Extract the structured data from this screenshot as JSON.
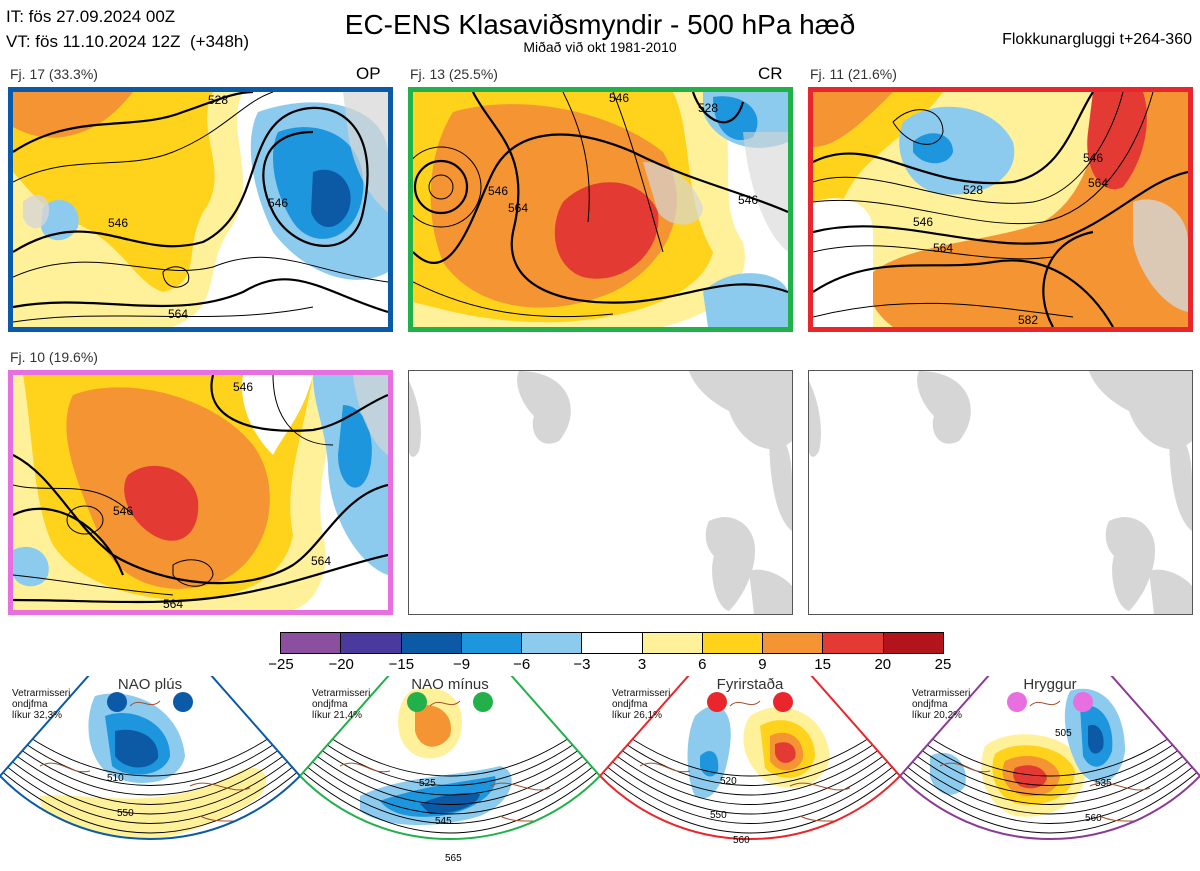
{
  "header": {
    "init": "IT: fös 27.09.2024 00Z",
    "valid": "VT: fös 11.10.2024 12Z  (+348h)",
    "title": "EC-ENS Klasaviðsmyndir - 500 hPa hæð",
    "subtitle": "Miðað við okt 1981-2010",
    "window": "Flokkunargluggi t+264-360"
  },
  "clusters": [
    {
      "label": "Fj. 17 (33.3%)",
      "tag": "OP",
      "color": "#0a5aa8",
      "contours": [
        "528",
        "546",
        "546",
        "564"
      ]
    },
    {
      "label": "Fj. 13 (25.5%)",
      "tag": "CR",
      "color": "#22b04b",
      "contours": [
        "546",
        "546",
        "564",
        "546",
        "528"
      ]
    },
    {
      "label": "Fj. 11 (21.6%)",
      "tag": "",
      "color": "#e8262b",
      "contours": [
        "528",
        "546",
        "564",
        "546",
        "564",
        "582"
      ]
    },
    {
      "label": "Fj. 10 (19.6%)",
      "tag": "",
      "color": "#e86fe0",
      "contours": [
        "546",
        "546",
        "564",
        "564"
      ]
    }
  ],
  "colorbar": {
    "colors": [
      "#8c4e9f",
      "#4b3a9d",
      "#0c5aa6",
      "#1e96dd",
      "#8dcbee",
      "#ffffff",
      "#fff19a",
      "#ffd21c",
      "#f59432",
      "#e33b34",
      "#b3131b"
    ],
    "labels": [
      "−25",
      "−20",
      "−15",
      "−9",
      "−6",
      "−3",
      "3",
      "6",
      "9",
      "15",
      "20",
      "25"
    ]
  },
  "regimes": [
    {
      "name": "NAO plús",
      "meta": [
        "Vetrarmisseri",
        "ondjfma",
        "líkur 32,3%"
      ],
      "color": "#0a5aa8",
      "labels": [
        "510",
        "550"
      ]
    },
    {
      "name": "NAO mínus",
      "meta": [
        "Vetrarmisseri",
        "ondjfma",
        "líkur 21,4%"
      ],
      "color": "#22b04b",
      "labels": [
        "525",
        "545",
        "565"
      ]
    },
    {
      "name": "Fyrirstaða",
      "meta": [
        "Vetrarmisseri",
        "ondjfma",
        "líkur 26,1%"
      ],
      "color": "#e8262b",
      "labels": [
        "520",
        "550",
        "560"
      ]
    },
    {
      "name": "Hryggur",
      "meta": [
        "Vetrarmisseri",
        "ondjfma",
        "líkur 20,2%"
      ],
      "color": "#e86fe0",
      "edge": "#8b3a96",
      "labels": [
        "505",
        "535",
        "560"
      ]
    }
  ]
}
